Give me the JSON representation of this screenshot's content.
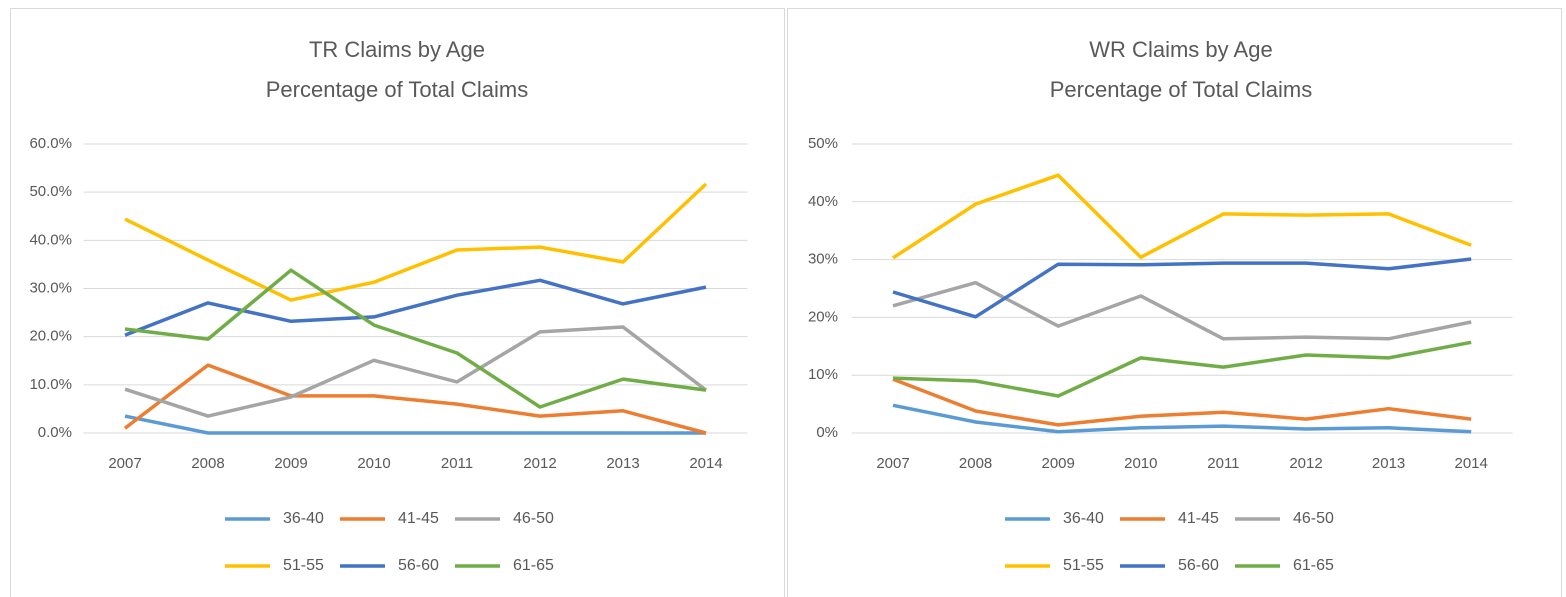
{
  "chart_data": [
    {
      "type": "line",
      "title": "TR Claims by Age",
      "subtitle": "Percentage of Total Claims",
      "categories": [
        "2007",
        "2008",
        "2009",
        "2010",
        "2011",
        "2012",
        "2013",
        "2014"
      ],
      "ylim": [
        0,
        60
      ],
      "yticks": [
        {
          "value": 0,
          "label": "0.0%"
        },
        {
          "value": 10,
          "label": "10.0%"
        },
        {
          "value": 20,
          "label": "20.0%"
        },
        {
          "value": 30,
          "label": "30.0%"
        },
        {
          "value": 40,
          "label": "40.0%"
        },
        {
          "value": 50,
          "label": "50.0%"
        },
        {
          "value": 60,
          "label": "60.0%"
        }
      ],
      "grid": true,
      "series": [
        {
          "name": "36-40",
          "color": "#5b9bd5",
          "values": [
            3.5,
            0,
            0,
            0,
            0,
            0,
            0,
            0
          ]
        },
        {
          "name": "41-45",
          "color": "#ed7d31",
          "values": [
            1.0,
            14.1,
            7.7,
            7.7,
            6.0,
            3.5,
            4.6,
            0
          ]
        },
        {
          "name": "46-50",
          "color": "#a5a5a5",
          "values": [
            9.1,
            3.5,
            7.5,
            15.1,
            10.6,
            21.0,
            22.0,
            8.9
          ]
        },
        {
          "name": "51-55",
          "color": "#ffc000",
          "values": [
            44.4,
            35.9,
            27.6,
            31.3,
            38.0,
            38.6,
            35.5,
            51.7
          ]
        },
        {
          "name": "56-60",
          "color": "#4472c4",
          "values": [
            20.3,
            27.0,
            23.2,
            24.1,
            28.6,
            31.7,
            26.8,
            30.3
          ]
        },
        {
          "name": "61-65",
          "color": "#70ad47",
          "values": [
            21.6,
            19.5,
            33.8,
            22.4,
            16.6,
            5.4,
            11.2,
            8.9
          ]
        }
      ]
    },
    {
      "type": "line",
      "title": "WR Claims by Age",
      "subtitle": "Percentage of Total Claims",
      "categories": [
        "2007",
        "2008",
        "2009",
        "2010",
        "2011",
        "2012",
        "2013",
        "2014"
      ],
      "ylim": [
        0,
        50
      ],
      "yticks": [
        {
          "value": 0,
          "label": "0%"
        },
        {
          "value": 10,
          "label": "10%"
        },
        {
          "value": 20,
          "label": "20%"
        },
        {
          "value": 30,
          "label": "30%"
        },
        {
          "value": 40,
          "label": "40%"
        },
        {
          "value": 50,
          "label": "50%"
        }
      ],
      "grid": true,
      "series": [
        {
          "name": "36-40",
          "color": "#5b9bd5",
          "values": [
            4.8,
            1.9,
            0.2,
            0.9,
            1.2,
            0.7,
            0.9,
            0.2
          ]
        },
        {
          "name": "41-45",
          "color": "#ed7d31",
          "values": [
            9.3,
            3.8,
            1.4,
            2.9,
            3.6,
            2.4,
            4.2,
            2.4
          ]
        },
        {
          "name": "46-50",
          "color": "#a5a5a5",
          "values": [
            22.0,
            26.0,
            18.5,
            23.7,
            16.3,
            16.6,
            16.3,
            19.2
          ]
        },
        {
          "name": "51-55",
          "color": "#ffc000",
          "values": [
            30.3,
            39.6,
            44.6,
            30.4,
            37.9,
            37.7,
            37.9,
            32.5
          ]
        },
        {
          "name": "56-60",
          "color": "#4472c4",
          "values": [
            24.4,
            20.1,
            29.2,
            29.1,
            29.4,
            29.4,
            28.4,
            30.1
          ]
        },
        {
          "name": "61-65",
          "color": "#70ad47",
          "values": [
            9.5,
            9.0,
            6.4,
            13.0,
            11.4,
            13.5,
            13.0,
            15.7
          ]
        }
      ]
    }
  ]
}
